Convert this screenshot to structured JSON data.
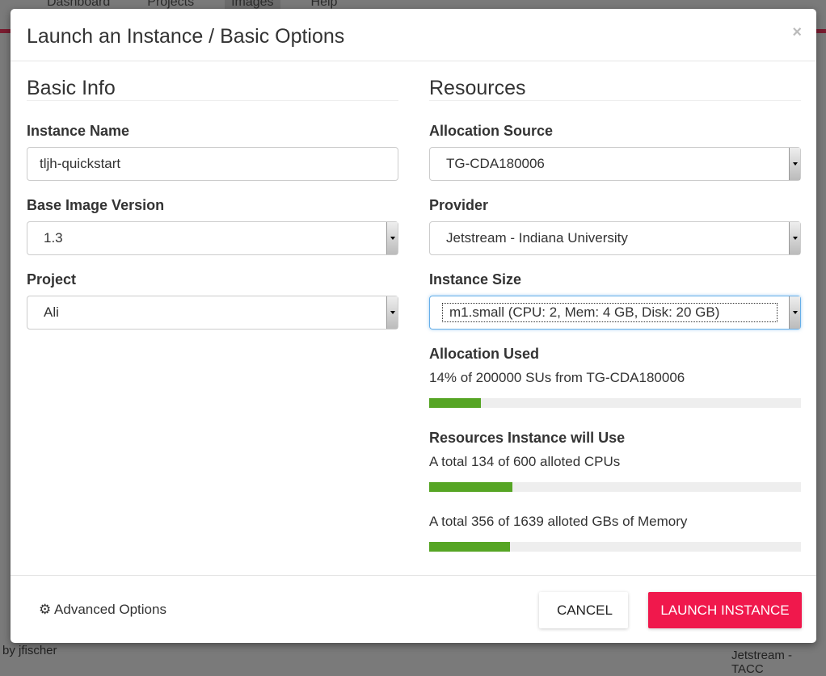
{
  "background": {
    "nav": [
      "Dashboard",
      "Projects",
      "Images",
      "Help"
    ],
    "owner": "by jfischer",
    "provider": "Jetstream - TACC"
  },
  "modal": {
    "title": "Launch an Instance / Basic Options",
    "close": "×"
  },
  "basic": {
    "heading": "Basic Info",
    "instance_name_label": "Instance Name",
    "instance_name": "tljh-quickstart",
    "base_image_label": "Base Image Version",
    "base_image": "1.3",
    "project_label": "Project",
    "project": "Ali"
  },
  "resources": {
    "heading": "Resources",
    "allocation_source_label": "Allocation Source",
    "allocation_source": "TG-CDA180006",
    "provider_label": "Provider",
    "provider": "Jetstream - Indiana University",
    "size_label": "Instance Size",
    "size": "m1.small (CPU: 2, Mem: 4 GB, Disk: 20 GB)",
    "alloc_used_label": "Allocation Used",
    "alloc_used_text": "14% of 200000 SUs from TG-CDA180006",
    "alloc_used_pct": 14,
    "will_use_label": "Resources Instance will Use",
    "cpu_text": "A total 134 of 600 alloted CPUs",
    "cpu_pct": 22.3,
    "mem_text": "A total 356 of 1639 alloted GBs of Memory",
    "mem_pct": 21.7
  },
  "footer": {
    "advanced": "Advanced Options",
    "cancel": "CANCEL",
    "launch": "LAUNCH INSTANCE"
  },
  "colors": {
    "launch": "#f0184c",
    "progress": "#56a524"
  }
}
